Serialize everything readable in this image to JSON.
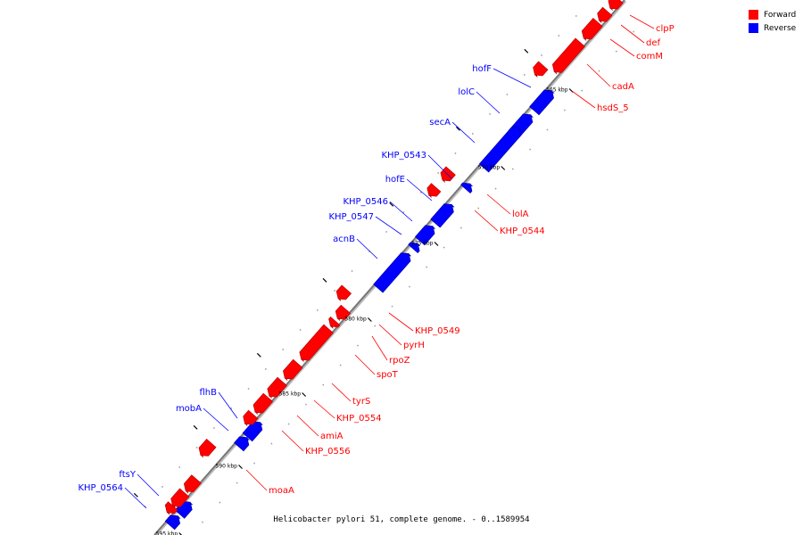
{
  "caption": "Helicobacter pylori 51, complete genome. - 0..1589954",
  "legend": [
    {
      "label": "Forward",
      "color": "#ff0000"
    },
    {
      "label": "Reverse",
      "color": "#0000ff"
    }
  ],
  "colors": {
    "forward": "#ff0000",
    "reverse": "#0000ff",
    "forward_edge": "#b00000",
    "reverse_edge": "#0000a0"
  },
  "ticks": [
    "565 kbp",
    "570 kbp",
    "575 kbp",
    "580 kbp",
    "585 kbp",
    "590 kbp",
    "595 kbp"
  ],
  "genes": {
    "reverse": [
      "hofF",
      "lolC",
      "secA",
      "KHP_0543",
      "hofE",
      "KHP_0546",
      "KHP_0547",
      "acnB",
      "flhB",
      "mobA",
      "ftsY",
      "KHP_0564"
    ],
    "forward": [
      "clpP",
      "def",
      "comM",
      "cadA",
      "hsdS_5",
      "lolA",
      "KHP_0544",
      "KHP_0549",
      "pyrH",
      "rpoZ",
      "spoT",
      "tyrS",
      "KHP_0554",
      "amiA",
      "KHP_0556",
      "moaA"
    ]
  }
}
